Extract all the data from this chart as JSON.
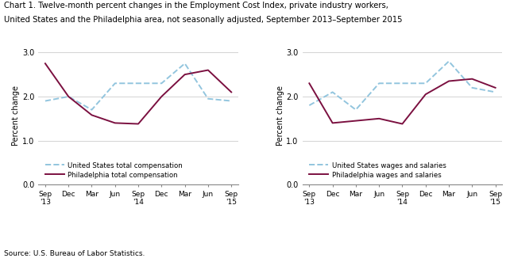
{
  "title_line1": "Chart 1. Twelve-month percent changes in the Employment Cost Index, private industry workers,",
  "title_line2": "United States and the Philadelphia area, not seasonally adjusted, September 2013–September 2015",
  "ylabel": "Percent change",
  "source": "Source: U.S. Bureau of Labor Statistics.",
  "xtick_labels": [
    "Sep\n'13",
    "Dec",
    "Mar",
    "Jun",
    "Sep\n'14",
    "Dec",
    "Mar",
    "Jun",
    "Sep\n'15"
  ],
  "yticks": [
    0.0,
    1.0,
    2.0,
    3.0
  ],
  "ylim": [
    0.0,
    3.15
  ],
  "left_chart": {
    "us_total_comp": [
      1.9,
      2.0,
      1.7,
      2.3,
      2.3,
      2.3,
      2.75,
      1.95,
      1.9
    ],
    "philly_total_comp": [
      2.75,
      2.0,
      1.58,
      1.4,
      1.38,
      2.0,
      2.5,
      2.6,
      2.1
    ],
    "legend1": "United States total compensation",
    "legend2": "Philadelphia total compensation"
  },
  "right_chart": {
    "us_wages_salaries": [
      1.8,
      2.1,
      1.7,
      2.3,
      2.3,
      2.3,
      2.8,
      2.2,
      2.1
    ],
    "philly_wages_salaries": [
      2.3,
      1.4,
      1.45,
      1.5,
      1.38,
      2.05,
      2.35,
      2.4,
      2.2
    ],
    "legend1": "United States wages and salaries",
    "legend2": "Philadelphia wages and salaries"
  },
  "us_color": "#92C5DE",
  "philly_color": "#7B1040",
  "linewidth": 1.4
}
